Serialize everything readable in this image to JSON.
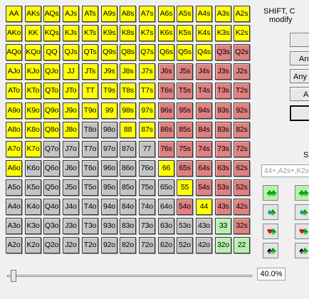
{
  "grid": {
    "rows": [
      [
        "AA",
        "AKs",
        "AQs",
        "AJs",
        "ATs",
        "A9s",
        "A8s",
        "A7s",
        "A6s",
        "A5s",
        "A4s",
        "A3s",
        "A2s"
      ],
      [
        "AKo",
        "KK",
        "KQs",
        "KJs",
        "KTs",
        "K9s",
        "K8s",
        "K7s",
        "K6s",
        "K5s",
        "K4s",
        "K3s",
        "K2s"
      ],
      [
        "AQo",
        "KQo",
        "QQ",
        "QJs",
        "QTs",
        "Q9s",
        "Q8s",
        "Q7s",
        "Q6s",
        "Q5s",
        "Q4s",
        "Q3s",
        "Q2s"
      ],
      [
        "AJo",
        "KJo",
        "QJo",
        "JJ",
        "JTs",
        "J9s",
        "J8s",
        "J7s",
        "J6s",
        "J5s",
        "J4s",
        "J3s",
        "J2s"
      ],
      [
        "ATo",
        "KTo",
        "QTo",
        "JTo",
        "TT",
        "T9s",
        "T8s",
        "T7s",
        "T6s",
        "T5s",
        "T4s",
        "T3s",
        "T2s"
      ],
      [
        "A9o",
        "K9o",
        "Q9o",
        "J9o",
        "T9o",
        "99",
        "98s",
        "97s",
        "96s",
        "95s",
        "94s",
        "93s",
        "92s"
      ],
      [
        "A8o",
        "K8o",
        "Q8o",
        "J8o",
        "T8o",
        "98o",
        "88",
        "87s",
        "86s",
        "85s",
        "84s",
        "83s",
        "82s"
      ],
      [
        "A7o",
        "K7o",
        "Q7o",
        "J7o",
        "T7o",
        "97o",
        "87o",
        "77",
        "76s",
        "75s",
        "74s",
        "73s",
        "72s"
      ],
      [
        "A6o",
        "K6o",
        "Q6o",
        "J6o",
        "T6o",
        "96o",
        "86o",
        "76o",
        "66",
        "65s",
        "64s",
        "63s",
        "62s"
      ],
      [
        "A5o",
        "K5o",
        "Q5o",
        "J5o",
        "T5o",
        "95o",
        "85o",
        "75o",
        "65o",
        "55",
        "54s",
        "53s",
        "52s"
      ],
      [
        "A4o",
        "K4o",
        "Q4o",
        "J4o",
        "T4o",
        "94o",
        "84o",
        "74o",
        "64o",
        "54o",
        "44",
        "43s",
        "42s"
      ],
      [
        "A3o",
        "K3o",
        "Q3o",
        "J3o",
        "T3o",
        "93o",
        "83o",
        "73o",
        "63o",
        "53o",
        "43o",
        "33",
        "32s"
      ],
      [
        "A2o",
        "K2o",
        "Q2o",
        "J2o",
        "T2o",
        "92o",
        "82o",
        "72o",
        "62o",
        "52o",
        "42o",
        "32o",
        "22"
      ]
    ],
    "state_rows": [
      "yyyyyyyyyyyyy",
      "yyyyyyyyyyyyy",
      "yyyyyyyyyyyrr",
      "yyyyyyyyrrrrr",
      "yyyyyyyyrrrrr",
      "yyyyyyyyrrrrr",
      "yyyyggyyrrrrr",
      "yyggggggrrrrr",
      "ygggggggyrrrr",
      "gggggggggyrrr",
      "gggggggggryrr",
      "gggggggggggGr",
      "gggggggggggGG"
    ],
    "colors": {
      "selected": "#ffff00",
      "suited": "#e08080",
      "offsuit": "#c4c4c4",
      "pair_unselected": "#b8f0b0"
    }
  },
  "side": {
    "label_line1": "SHIFT, C",
    "label_line2": "modify",
    "buttons": [
      "",
      "Any",
      "Any P",
      "An",
      ""
    ],
    "select_label": "S",
    "suit_input_value": "44+,A2s+,K2s"
  },
  "suit_tiles": [
    {
      "suits": [
        "club",
        "club"
      ],
      "on": true
    },
    {
      "suits": [
        "club",
        "club"
      ],
      "on": true
    },
    {
      "suits": [
        "diamond",
        "club"
      ],
      "on": false
    },
    {
      "suits": [
        "diamond",
        "club"
      ],
      "on": false
    },
    {
      "suits": [
        "heart",
        "club"
      ],
      "on": false
    },
    {
      "suits": [
        "heart",
        "club"
      ],
      "on": false
    },
    {
      "suits": [
        "spade",
        "club"
      ],
      "on": false
    },
    {
      "suits": [
        "spade",
        "club"
      ],
      "on": false
    }
  ],
  "slider": {
    "value_percent": 40.0,
    "label": "40.0%",
    "thumb_fraction": 0.0
  }
}
